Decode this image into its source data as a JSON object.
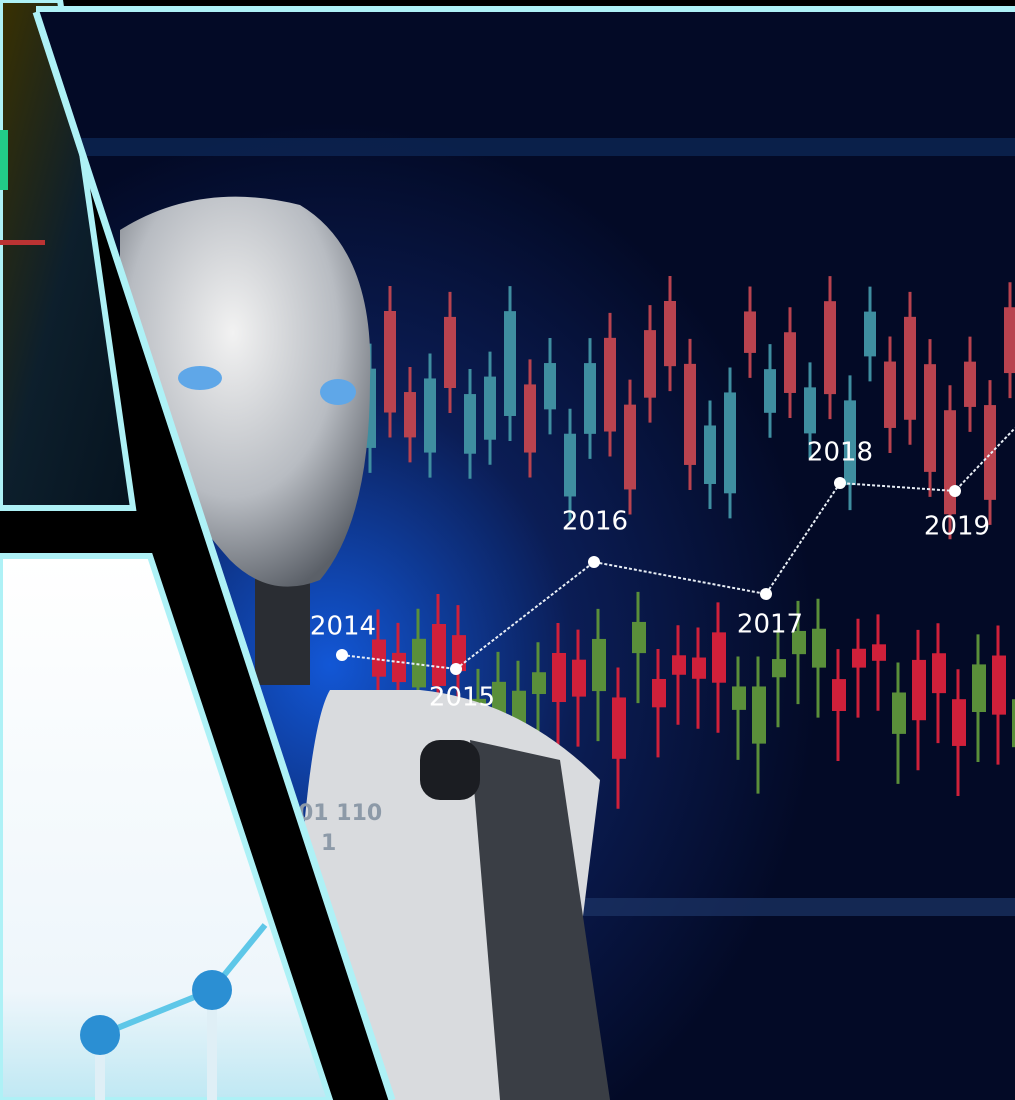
{
  "timeline": {
    "labels": [
      "2014",
      "2015",
      "2016",
      "2017",
      "2018",
      "2019"
    ]
  },
  "overlay_text": [
    "01 110",
    "1 1"
  ]
}
